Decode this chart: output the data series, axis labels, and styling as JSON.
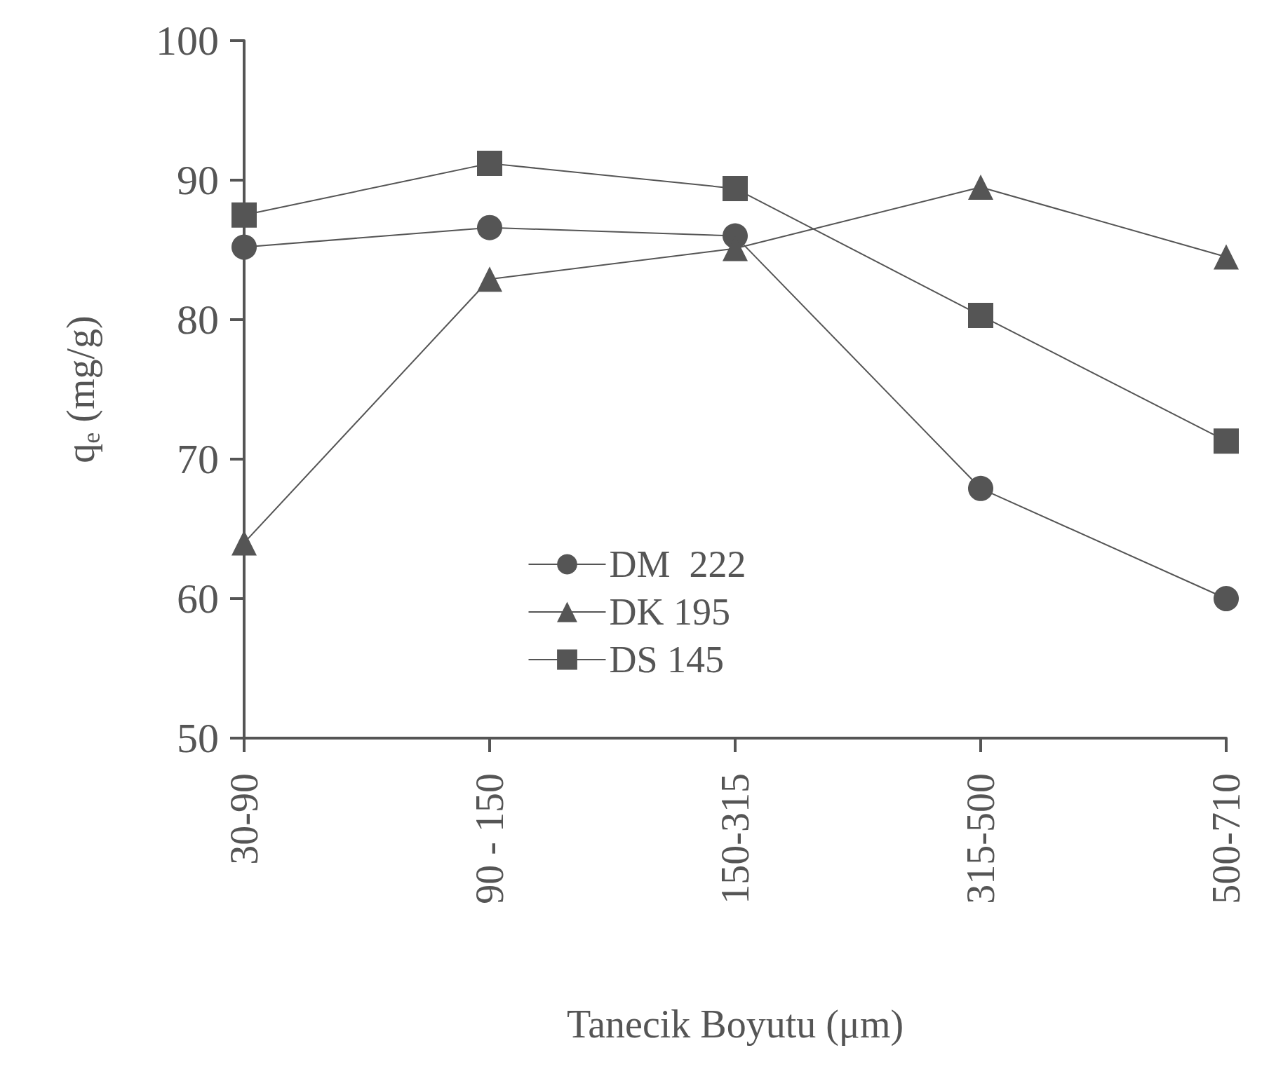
{
  "chart_data": {
    "type": "line",
    "xlabel": "Tanecik Boyutu (μm)",
    "ylabel": "q$_{e}$ (mg/g)",
    "categories": [
      "30-90",
      "90 - 150",
      "150-315",
      "315-500",
      "500-710"
    ],
    "series": [
      {
        "name": "DM  222",
        "color": "#555555",
        "marker": "circle",
        "values": [
          85.2,
          86.6,
          86.0,
          67.9,
          60.0
        ]
      },
      {
        "name": "DK 195",
        "color": "#555555",
        "marker": "triangle",
        "values": [
          64.0,
          82.9,
          85.1,
          89.5,
          84.5
        ]
      },
      {
        "name": "DS 145",
        "color": "#555555",
        "marker": "square",
        "values": [
          87.5,
          91.2,
          89.4,
          80.3,
          71.3
        ]
      }
    ],
    "ylim": [
      50,
      100
    ],
    "yticks": [
      50,
      60,
      70,
      80,
      90,
      100
    ],
    "grid": false,
    "legend": "bottom",
    "line_style": "solid"
  }
}
